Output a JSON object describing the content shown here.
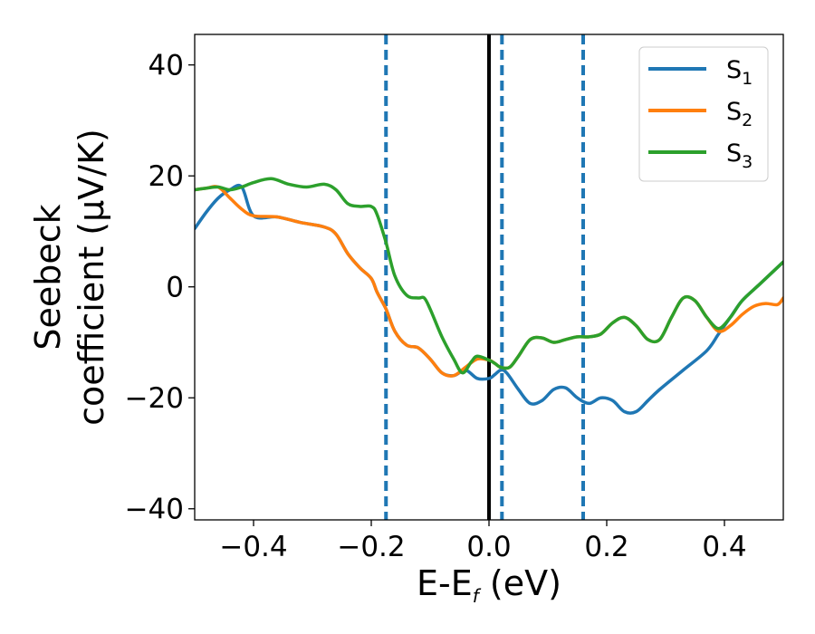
{
  "chart_data": {
    "type": "line",
    "xlabel_main": "E-E",
    "xlabel_sub": "f",
    "xlabel_unit": " (eV)",
    "ylabel_line1": "Seebeck",
    "ylabel_line2": "coefficient  (μV/K)",
    "xlim": [
      -0.5,
      0.5
    ],
    "ylim": [
      -42,
      45.5
    ],
    "xticks": [
      -0.4,
      -0.2,
      0.0,
      0.2,
      0.4
    ],
    "xtick_labels": [
      "−0.4",
      "−0.2",
      "0.0",
      "0.2",
      "0.4"
    ],
    "yticks": [
      -40,
      -20,
      0,
      20,
      40
    ],
    "ytick_labels": [
      "−40",
      "−20",
      "0",
      "20",
      "40"
    ],
    "grid": false,
    "legend_position": "top-right",
    "vertical_lines": [
      {
        "x": -0.175,
        "style": "dashed",
        "color": "#1f77b4"
      },
      {
        "x": 0.0,
        "style": "solid",
        "color": "#000000"
      },
      {
        "x": 0.022,
        "style": "dashed",
        "color": "#1f77b4"
      },
      {
        "x": 0.16,
        "style": "dashed",
        "color": "#1f77b4"
      }
    ],
    "series": [
      {
        "name": "S",
        "sub": "1",
        "color": "#1f77b4",
        "points": [
          [
            -0.5,
            10.5
          ],
          [
            -0.48,
            13.5
          ],
          [
            -0.46,
            16
          ],
          [
            -0.44,
            17.5
          ],
          [
            -0.42,
            18
          ],
          [
            -0.4,
            12.8
          ],
          [
            -0.36,
            12.6
          ],
          [
            -0.32,
            11.6
          ],
          [
            -0.28,
            10.8
          ],
          [
            -0.26,
            9.5
          ],
          [
            -0.24,
            6
          ],
          [
            -0.22,
            3.5
          ],
          [
            -0.2,
            1.5
          ],
          [
            -0.19,
            -1
          ],
          [
            -0.175,
            -4
          ],
          [
            -0.16,
            -8
          ],
          [
            -0.14,
            -10.5
          ],
          [
            -0.12,
            -11
          ],
          [
            -0.1,
            -13
          ],
          [
            -0.08,
            -15.5
          ],
          [
            -0.06,
            -16
          ],
          [
            -0.04,
            -15
          ],
          [
            -0.02,
            -16.5
          ],
          [
            0.0,
            -16.5
          ],
          [
            0.01,
            -15.8
          ],
          [
            0.02,
            -15
          ],
          [
            0.03,
            -15.5
          ],
          [
            0.05,
            -18.5
          ],
          [
            0.07,
            -21
          ],
          [
            0.09,
            -20.5
          ],
          [
            0.11,
            -18.5
          ],
          [
            0.13,
            -18.2
          ],
          [
            0.15,
            -20
          ],
          [
            0.17,
            -21
          ],
          [
            0.19,
            -20
          ],
          [
            0.21,
            -20.5
          ],
          [
            0.23,
            -22.5
          ],
          [
            0.25,
            -22.5
          ],
          [
            0.27,
            -20.5
          ],
          [
            0.29,
            -18.5
          ],
          [
            0.33,
            -15
          ],
          [
            0.37,
            -11.5
          ],
          [
            0.39,
            -8.5
          ],
          [
            0.41,
            -5.5
          ],
          [
            0.43,
            -2.5
          ],
          [
            0.46,
            0.5
          ],
          [
            0.5,
            4.5
          ]
        ]
      },
      {
        "name": "S",
        "sub": "2",
        "color": "#ff7f0e",
        "points": [
          [
            -0.5,
            17.5
          ],
          [
            -0.48,
            17.8
          ],
          [
            -0.46,
            18
          ],
          [
            -0.44,
            16
          ],
          [
            -0.42,
            14
          ],
          [
            -0.4,
            12.8
          ],
          [
            -0.36,
            12.6
          ],
          [
            -0.32,
            11.6
          ],
          [
            -0.28,
            10.8
          ],
          [
            -0.26,
            9.5
          ],
          [
            -0.24,
            6
          ],
          [
            -0.22,
            3.5
          ],
          [
            -0.2,
            1.5
          ],
          [
            -0.19,
            -1
          ],
          [
            -0.175,
            -4
          ],
          [
            -0.16,
            -8
          ],
          [
            -0.14,
            -10.5
          ],
          [
            -0.12,
            -11
          ],
          [
            -0.1,
            -13
          ],
          [
            -0.08,
            -15.5
          ],
          [
            -0.06,
            -16
          ],
          [
            -0.04,
            -14.5
          ],
          [
            -0.02,
            -13
          ],
          [
            0.0,
            -13.2
          ],
          [
            0.01,
            -13.8
          ],
          [
            0.02,
            -14.5
          ],
          [
            0.035,
            -14.5
          ],
          [
            0.05,
            -12.5
          ],
          [
            0.07,
            -9.5
          ],
          [
            0.09,
            -9.2
          ],
          [
            0.11,
            -10
          ],
          [
            0.13,
            -9.5
          ],
          [
            0.15,
            -9
          ],
          [
            0.17,
            -9
          ],
          [
            0.19,
            -8.5
          ],
          [
            0.21,
            -6.5
          ],
          [
            0.23,
            -5.5
          ],
          [
            0.25,
            -7
          ],
          [
            0.27,
            -9.5
          ],
          [
            0.29,
            -9.5
          ],
          [
            0.31,
            -5.5
          ],
          [
            0.33,
            -2
          ],
          [
            0.35,
            -2.5
          ],
          [
            0.37,
            -5.5
          ],
          [
            0.39,
            -8
          ],
          [
            0.41,
            -7
          ],
          [
            0.43,
            -5
          ],
          [
            0.45,
            -3.5
          ],
          [
            0.47,
            -3
          ],
          [
            0.49,
            -3.2
          ],
          [
            0.5,
            -2
          ]
        ]
      },
      {
        "name": "S",
        "sub": "3",
        "color": "#2ca02c",
        "points": [
          [
            -0.5,
            17.5
          ],
          [
            -0.48,
            17.8
          ],
          [
            -0.46,
            18
          ],
          [
            -0.44,
            17.5
          ],
          [
            -0.42,
            18
          ],
          [
            -0.4,
            18.8
          ],
          [
            -0.37,
            19.5
          ],
          [
            -0.34,
            18.5
          ],
          [
            -0.31,
            18
          ],
          [
            -0.28,
            18.5
          ],
          [
            -0.26,
            17.5
          ],
          [
            -0.24,
            15
          ],
          [
            -0.22,
            14.5
          ],
          [
            -0.2,
            14.5
          ],
          [
            -0.19,
            13
          ],
          [
            -0.175,
            8
          ],
          [
            -0.16,
            2
          ],
          [
            -0.14,
            -1.5
          ],
          [
            -0.12,
            -2
          ],
          [
            -0.11,
            -2
          ],
          [
            -0.1,
            -4
          ],
          [
            -0.08,
            -9
          ],
          [
            -0.06,
            -13
          ],
          [
            -0.045,
            -15.5
          ],
          [
            -0.03,
            -13.5
          ],
          [
            -0.02,
            -12.5
          ],
          [
            0.0,
            -13.2
          ],
          [
            0.01,
            -13.8
          ],
          [
            0.02,
            -14.5
          ],
          [
            0.035,
            -14.5
          ],
          [
            0.05,
            -12.5
          ],
          [
            0.07,
            -9.5
          ],
          [
            0.09,
            -9.2
          ],
          [
            0.11,
            -10
          ],
          [
            0.13,
            -9.5
          ],
          [
            0.15,
            -9
          ],
          [
            0.17,
            -9
          ],
          [
            0.19,
            -8.5
          ],
          [
            0.21,
            -6.5
          ],
          [
            0.23,
            -5.5
          ],
          [
            0.25,
            -7
          ],
          [
            0.27,
            -9.5
          ],
          [
            0.29,
            -9.5
          ],
          [
            0.31,
            -5.5
          ],
          [
            0.33,
            -2
          ],
          [
            0.35,
            -2.5
          ],
          [
            0.37,
            -5.5
          ],
          [
            0.39,
            -7.5
          ],
          [
            0.41,
            -5.5
          ],
          [
            0.43,
            -2.5
          ],
          [
            0.46,
            0.5
          ],
          [
            0.5,
            4.5
          ]
        ]
      }
    ]
  }
}
